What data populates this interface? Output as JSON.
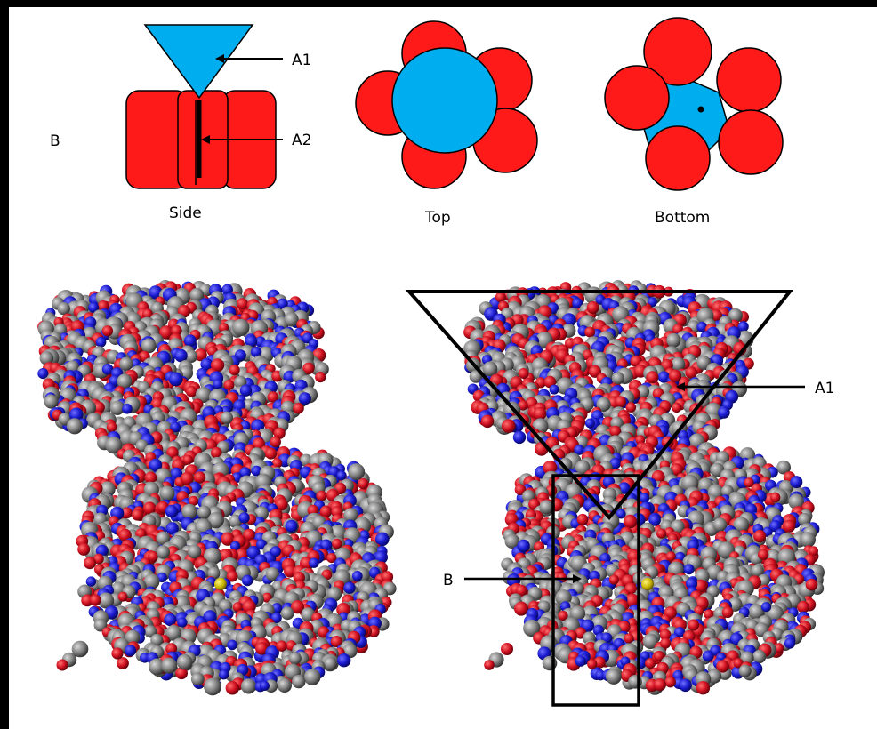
{
  "labels": {
    "schematic_b": "B",
    "a1": "A1",
    "a2": "A2",
    "side": "Side",
    "top": "Top",
    "bottom": "Bottom",
    "model_a1": "A1",
    "model_b": "B"
  },
  "colors": {
    "frame": "#000000",
    "background": "#ffffff",
    "subunit": "#ff1a1a",
    "core": "#00aeef",
    "outline": "#000000",
    "atom_red": "#cc1020",
    "atom_blue": "#1a1ad0",
    "atom_gray": "#7a7a7a",
    "atom_yellow": "#c8b400"
  }
}
